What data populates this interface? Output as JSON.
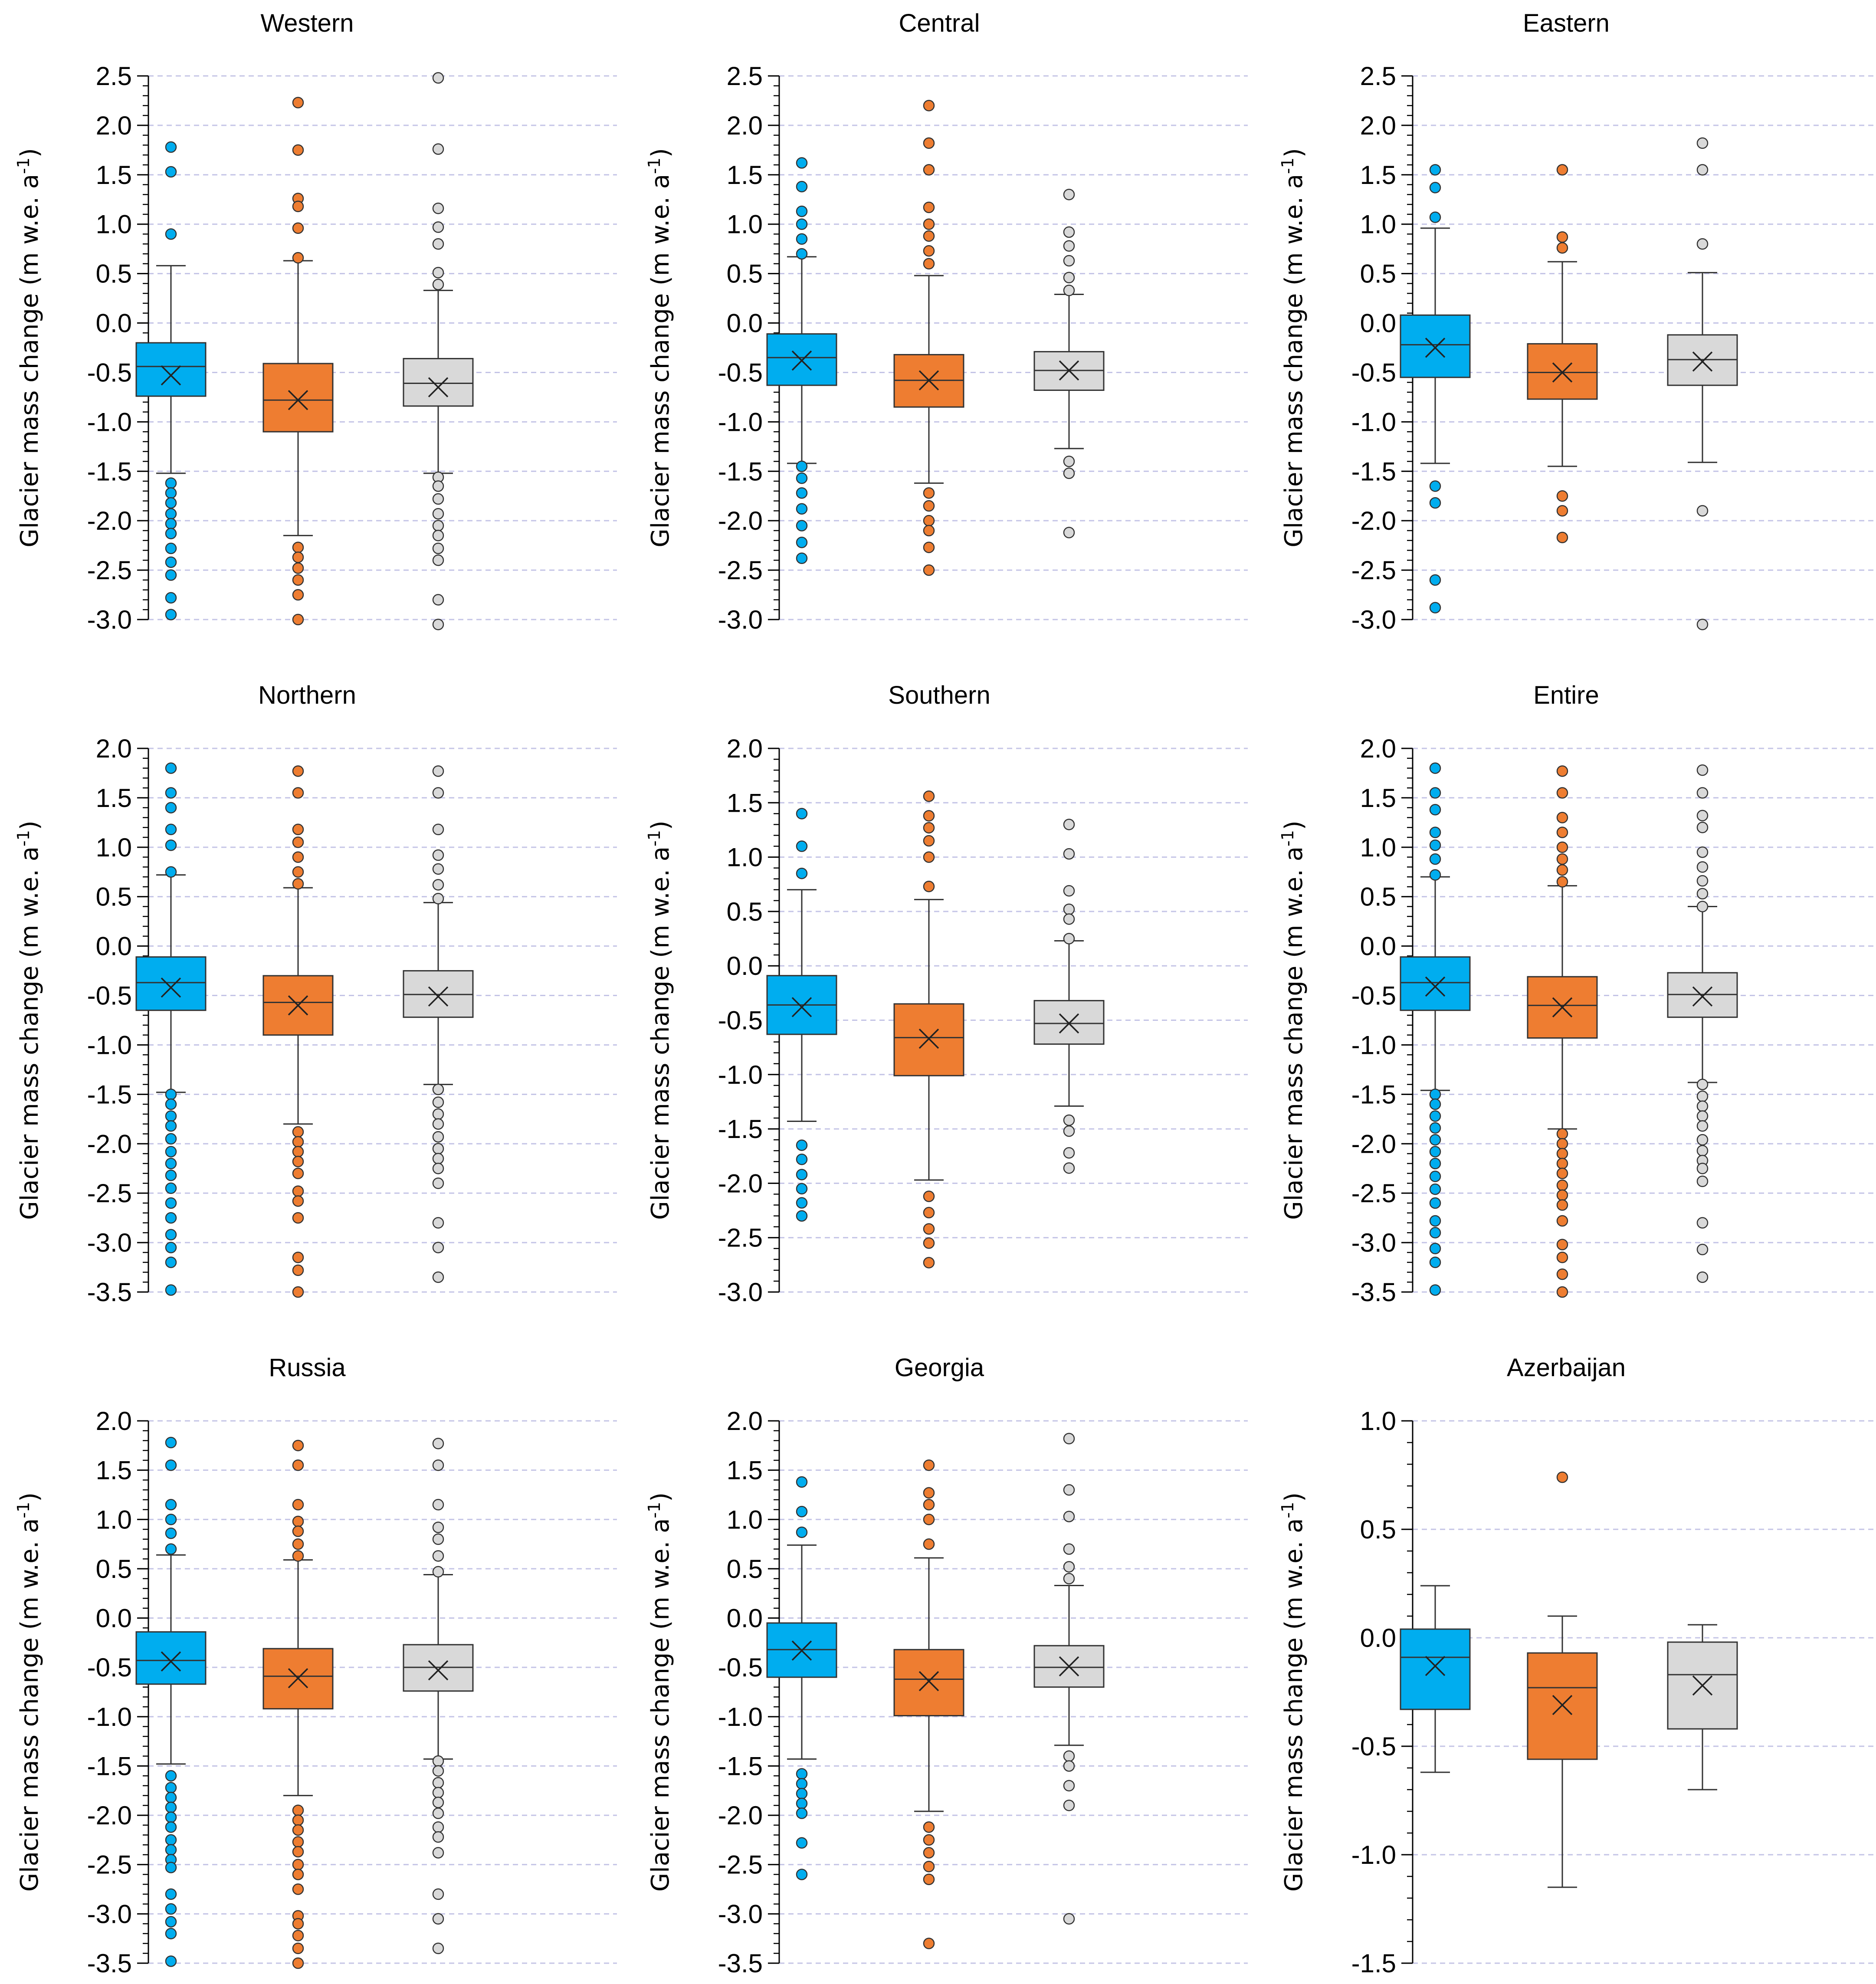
{
  "figure": {
    "y_axis_label_main": "Glacier mass change (m w.e. a",
    "y_axis_label_sup": "-1",
    "y_axis_label_end": ")"
  },
  "colors": {
    "series_1": "#00adef",
    "series_2": "#ee7d31",
    "series_3": "#d9d9d9",
    "grid": "#c4c4e6"
  },
  "chart_data": [
    {
      "type": "box",
      "title": "Western",
      "ylim": [
        -3.0,
        2.5
      ],
      "ticks": [
        "2.5",
        "2.0",
        "1.5",
        "1.0",
        "0.5",
        "0.0",
        "-0.5",
        "-1.0",
        "-1.5",
        "-2.0",
        "-2.5",
        "-3.0"
      ],
      "series": [
        {
          "q1": -0.74,
          "median": -0.44,
          "q3": -0.2,
          "mean": -0.53,
          "whisker_low": -1.52,
          "whisker_high": 0.58,
          "outliers": [
            1.78,
            1.53,
            0.9,
            -1.62,
            -1.72,
            -1.82,
            -1.93,
            -2.03,
            -2.13,
            -2.28,
            -2.42,
            -2.55,
            -2.78,
            -2.95
          ]
        },
        {
          "q1": -1.1,
          "median": -0.78,
          "q3": -0.41,
          "mean": -0.78,
          "whisker_low": -2.15,
          "whisker_high": 0.63,
          "outliers": [
            2.23,
            1.75,
            1.26,
            1.18,
            0.96,
            0.66,
            -2.27,
            -2.37,
            -2.48,
            -2.6,
            -2.75,
            -3.0
          ]
        },
        {
          "q1": -0.84,
          "median": -0.61,
          "q3": -0.36,
          "mean": -0.65,
          "whisker_low": -1.52,
          "whisker_high": 0.33,
          "outliers": [
            2.48,
            1.76,
            1.16,
            0.97,
            0.8,
            0.51,
            0.39,
            -1.56,
            -1.65,
            -1.78,
            -1.93,
            -2.05,
            -2.15,
            -2.28,
            -2.4,
            -2.8,
            -3.05
          ]
        }
      ]
    },
    {
      "type": "box",
      "title": "Central",
      "ylim": [
        -3.0,
        2.5
      ],
      "ticks": [
        "2.5",
        "2.0",
        "1.5",
        "1.0",
        "0.5",
        "0.0",
        "-0.5",
        "-1.0",
        "-1.5",
        "-2.0",
        "-2.5",
        "-3.0"
      ],
      "series": [
        {
          "q1": -0.63,
          "median": -0.35,
          "q3": -0.11,
          "mean": -0.38,
          "whisker_low": -1.42,
          "whisker_high": 0.67,
          "outliers": [
            1.62,
            1.38,
            1.13,
            1.0,
            0.85,
            0.7,
            -1.45,
            -1.57,
            -1.72,
            -1.88,
            -2.05,
            -2.22,
            -2.38
          ]
        },
        {
          "q1": -0.85,
          "median": -0.58,
          "q3": -0.32,
          "mean": -0.58,
          "whisker_low": -1.62,
          "whisker_high": 0.48,
          "outliers": [
            2.2,
            1.82,
            1.55,
            1.17,
            1.0,
            0.88,
            0.73,
            0.6,
            -1.72,
            -1.85,
            -2.0,
            -2.1,
            -2.27,
            -2.5
          ]
        },
        {
          "q1": -0.68,
          "median": -0.48,
          "q3": -0.29,
          "mean": -0.48,
          "whisker_low": -1.27,
          "whisker_high": 0.29,
          "outliers": [
            1.3,
            0.92,
            0.78,
            0.63,
            0.46,
            0.33,
            -1.4,
            -1.52,
            -2.12
          ]
        }
      ]
    },
    {
      "type": "box",
      "title": "Eastern",
      "ylim": [
        -3.0,
        2.5
      ],
      "ticks": [
        "2.5",
        "2.0",
        "1.5",
        "1.0",
        "0.5",
        "0.0",
        "-0.5",
        "-1.0",
        "-1.5",
        "-2.0",
        "-2.5",
        "-3.0"
      ],
      "series": [
        {
          "q1": -0.55,
          "median": -0.22,
          "q3": 0.08,
          "mean": -0.25,
          "whisker_low": -1.42,
          "whisker_high": 0.96,
          "outliers": [
            1.55,
            1.37,
            1.07,
            -1.65,
            -1.82,
            -2.6,
            -2.88
          ]
        },
        {
          "q1": -0.77,
          "median": -0.5,
          "q3": -0.21,
          "mean": -0.5,
          "whisker_low": -1.45,
          "whisker_high": 0.62,
          "outliers": [
            1.55,
            0.87,
            0.76,
            -1.75,
            -1.9,
            -2.17
          ]
        },
        {
          "q1": -0.63,
          "median": -0.37,
          "q3": -0.12,
          "mean": -0.39,
          "whisker_low": -1.41,
          "whisker_high": 0.51,
          "outliers": [
            1.82,
            1.55,
            0.8,
            -1.9,
            -3.05
          ]
        }
      ]
    },
    {
      "type": "box",
      "title": "Northern",
      "ylim": [
        -3.5,
        2.0
      ],
      "ticks": [
        "2.0",
        "1.5",
        "1.0",
        "0.5",
        "0.0",
        "-0.5",
        "-1.0",
        "-1.5",
        "-2.0",
        "-2.5",
        "-3.0",
        "-3.5"
      ],
      "series": [
        {
          "q1": -0.65,
          "median": -0.37,
          "q3": -0.11,
          "mean": -0.42,
          "whisker_low": -1.48,
          "whisker_high": 0.72,
          "outliers": [
            1.8,
            1.55,
            1.4,
            1.18,
            1.02,
            0.75,
            -1.5,
            -1.6,
            -1.72,
            -1.82,
            -1.95,
            -2.08,
            -2.2,
            -2.32,
            -2.45,
            -2.6,
            -2.75,
            -2.92,
            -3.05,
            -3.2,
            -3.48
          ]
        },
        {
          "q1": -0.9,
          "median": -0.57,
          "q3": -0.3,
          "mean": -0.6,
          "whisker_low": -1.8,
          "whisker_high": 0.59,
          "outliers": [
            1.77,
            1.55,
            1.18,
            1.05,
            0.9,
            0.75,
            0.63,
            -1.88,
            -1.98,
            -2.08,
            -2.18,
            -2.3,
            -2.48,
            -2.58,
            -2.75,
            -3.15,
            -3.28,
            -3.5
          ]
        },
        {
          "q1": -0.72,
          "median": -0.49,
          "q3": -0.25,
          "mean": -0.51,
          "whisker_low": -1.4,
          "whisker_high": 0.44,
          "outliers": [
            1.77,
            1.55,
            1.18,
            0.92,
            0.78,
            0.62,
            0.48,
            -1.45,
            -1.58,
            -1.7,
            -1.8,
            -1.93,
            -2.05,
            -2.15,
            -2.25,
            -2.4,
            -2.8,
            -3.05,
            -3.35
          ]
        }
      ]
    },
    {
      "type": "box",
      "title": "Southern",
      "ylim": [
        -3.0,
        2.0
      ],
      "ticks": [
        "2.0",
        "1.5",
        "1.0",
        "0.5",
        "0.0",
        "-0.5",
        "-1.0",
        "-1.5",
        "-2.0",
        "-2.5",
        "-3.0"
      ],
      "series": [
        {
          "q1": -0.63,
          "median": -0.36,
          "q3": -0.09,
          "mean": -0.38,
          "whisker_low": -1.43,
          "whisker_high": 0.7,
          "outliers": [
            1.4,
            1.1,
            0.85,
            -1.65,
            -1.78,
            -1.92,
            -2.05,
            -2.18,
            -2.3
          ]
        },
        {
          "q1": -1.01,
          "median": -0.66,
          "q3": -0.35,
          "mean": -0.67,
          "whisker_low": -1.97,
          "whisker_high": 0.61,
          "outliers": [
            1.56,
            1.38,
            1.27,
            1.15,
            1.0,
            0.73,
            -2.12,
            -2.27,
            -2.42,
            -2.55,
            -2.73
          ]
        },
        {
          "q1": -0.72,
          "median": -0.53,
          "q3": -0.32,
          "mean": -0.53,
          "whisker_low": -1.29,
          "whisker_high": 0.23,
          "outliers": [
            1.3,
            1.03,
            0.69,
            0.52,
            0.43,
            0.25,
            -1.42,
            -1.52,
            -1.72,
            -1.86
          ]
        }
      ]
    },
    {
      "type": "box",
      "title": "Entire",
      "ylim": [
        -3.5,
        2.0
      ],
      "ticks": [
        "2.0",
        "1.5",
        "1.0",
        "0.5",
        "0.0",
        "-0.5",
        "-1.0",
        "-1.5",
        "-2.0",
        "-2.5",
        "-3.0",
        "-3.5"
      ],
      "series": [
        {
          "q1": -0.65,
          "median": -0.37,
          "q3": -0.11,
          "mean": -0.41,
          "whisker_low": -1.46,
          "whisker_high": 0.7,
          "outliers": [
            1.8,
            1.55,
            1.38,
            1.15,
            1.02,
            0.88,
            0.72,
            -1.5,
            -1.6,
            -1.72,
            -1.84,
            -1.96,
            -2.08,
            -2.2,
            -2.33,
            -2.46,
            -2.6,
            -2.78,
            -2.9,
            -3.06,
            -3.2,
            -3.48
          ]
        },
        {
          "q1": -0.93,
          "median": -0.6,
          "q3": -0.31,
          "mean": -0.62,
          "whisker_low": -1.85,
          "whisker_high": 0.61,
          "outliers": [
            1.77,
            1.55,
            1.3,
            1.15,
            1.0,
            0.88,
            0.77,
            0.65,
            -1.9,
            -2.0,
            -2.1,
            -2.2,
            -2.3,
            -2.42,
            -2.52,
            -2.62,
            -2.78,
            -3.02,
            -3.15,
            -3.32,
            -3.5
          ]
        },
        {
          "q1": -0.72,
          "median": -0.49,
          "q3": -0.27,
          "mean": -0.51,
          "whisker_low": -1.38,
          "whisker_high": 0.4,
          "outliers": [
            1.78,
            1.55,
            1.32,
            1.2,
            0.95,
            0.8,
            0.66,
            0.53,
            0.4,
            -1.4,
            -1.52,
            -1.62,
            -1.72,
            -1.82,
            -1.96,
            -2.07,
            -2.17,
            -2.25,
            -2.38,
            -2.8,
            -3.07,
            -3.35
          ]
        }
      ]
    },
    {
      "type": "box",
      "title": "Russia",
      "ylim": [
        -3.5,
        2.0
      ],
      "ticks": [
        "2.0",
        "1.5",
        "1.0",
        "0.5",
        "0.0",
        "-0.5",
        "-1.0",
        "-1.5",
        "-2.0",
        "-2.5",
        "-3.0",
        "-3.5"
      ],
      "series": [
        {
          "q1": -0.67,
          "median": -0.43,
          "q3": -0.14,
          "mean": -0.44,
          "whisker_low": -1.48,
          "whisker_high": 0.64,
          "outliers": [
            1.78,
            1.55,
            1.15,
            1.0,
            0.86,
            0.7,
            -1.6,
            -1.72,
            -1.82,
            -1.92,
            -2.02,
            -2.12,
            -2.25,
            -2.35,
            -2.45,
            -2.53,
            -2.8,
            -2.95,
            -3.08,
            -3.2,
            -3.48
          ]
        },
        {
          "q1": -0.92,
          "median": -0.59,
          "q3": -0.31,
          "mean": -0.61,
          "whisker_low": -1.8,
          "whisker_high": 0.59,
          "outliers": [
            1.75,
            1.55,
            1.15,
            0.98,
            0.88,
            0.75,
            0.63,
            -1.95,
            -2.05,
            -2.15,
            -2.27,
            -2.37,
            -2.5,
            -2.6,
            -2.75,
            -3.02,
            -3.1,
            -3.22,
            -3.35,
            -3.5
          ]
        },
        {
          "q1": -0.74,
          "median": -0.5,
          "q3": -0.27,
          "mean": -0.53,
          "whisker_low": -1.43,
          "whisker_high": 0.44,
          "outliers": [
            1.77,
            1.55,
            1.15,
            0.92,
            0.8,
            0.63,
            0.47,
            -1.45,
            -1.55,
            -1.67,
            -1.77,
            -1.87,
            -1.98,
            -2.12,
            -2.22,
            -2.38,
            -2.8,
            -3.05,
            -3.35
          ]
        }
      ]
    },
    {
      "type": "box",
      "title": "Georgia",
      "ylim": [
        -3.5,
        2.0
      ],
      "ticks": [
        "2.0",
        "1.5",
        "1.0",
        "0.5",
        "0.0",
        "-0.5",
        "-1.0",
        "-1.5",
        "-2.0",
        "-2.5",
        "-3.0",
        "-3.5"
      ],
      "series": [
        {
          "q1": -0.6,
          "median": -0.32,
          "q3": -0.05,
          "mean": -0.33,
          "whisker_low": -1.43,
          "whisker_high": 0.74,
          "outliers": [
            1.38,
            1.08,
            0.87,
            -1.58,
            -1.68,
            -1.78,
            -1.88,
            -1.98,
            -2.28,
            -2.6
          ]
        },
        {
          "q1": -0.99,
          "median": -0.62,
          "q3": -0.32,
          "mean": -0.64,
          "whisker_low": -1.96,
          "whisker_high": 0.61,
          "outliers": [
            1.55,
            1.27,
            1.15,
            1.0,
            0.75,
            -2.12,
            -2.25,
            -2.38,
            -2.52,
            -2.65,
            -3.3
          ]
        },
        {
          "q1": -0.7,
          "median": -0.5,
          "q3": -0.28,
          "mean": -0.49,
          "whisker_low": -1.29,
          "whisker_high": 0.33,
          "outliers": [
            1.82,
            1.3,
            1.03,
            0.7,
            0.52,
            0.4,
            -1.4,
            -1.5,
            -1.7,
            -1.9,
            -3.05
          ]
        }
      ]
    },
    {
      "type": "box",
      "title": "Azerbaijan",
      "ylim": [
        -1.5,
        1.0
      ],
      "ticks": [
        "1.0",
        "0.5",
        "0.0",
        "-0.5",
        "-1.0",
        "-1.5"
      ],
      "series": [
        {
          "q1": -0.33,
          "median": -0.09,
          "q3": 0.04,
          "mean": -0.13,
          "whisker_low": -0.62,
          "whisker_high": 0.24,
          "outliers": []
        },
        {
          "q1": -0.56,
          "median": -0.23,
          "q3": -0.07,
          "mean": -0.31,
          "whisker_low": -1.15,
          "whisker_high": 0.1,
          "outliers": [
            0.74
          ]
        },
        {
          "q1": -0.42,
          "median": -0.17,
          "q3": -0.02,
          "mean": -0.22,
          "whisker_low": -0.7,
          "whisker_high": 0.06,
          "outliers": []
        }
      ]
    }
  ]
}
